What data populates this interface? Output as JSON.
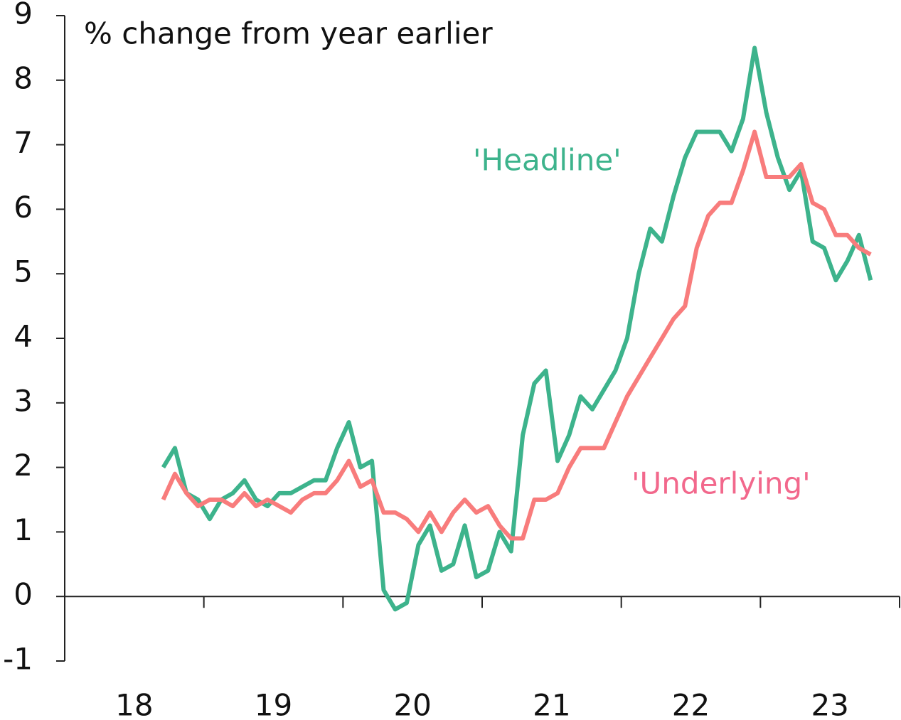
{
  "chart_data": {
    "type": "line",
    "title": "% change from year earlier",
    "annotations": [
      "'Headline'",
      "'Underlying'"
    ],
    "x": [
      18.708,
      18.792,
      18.875,
      18.958,
      19.042,
      19.125,
      19.208,
      19.292,
      19.375,
      19.458,
      19.542,
      19.625,
      19.708,
      19.792,
      19.875,
      19.958,
      20.042,
      20.125,
      20.208,
      20.292,
      20.375,
      20.458,
      20.542,
      20.625,
      20.708,
      20.792,
      20.875,
      20.958,
      21.042,
      21.125,
      21.208,
      21.292,
      21.375,
      21.458,
      21.542,
      21.625,
      21.708,
      21.792,
      21.875,
      21.958,
      22.042,
      22.125,
      22.208,
      22.292,
      22.375,
      22.458,
      22.542,
      22.625,
      22.708,
      22.792,
      22.875,
      22.958,
      23.042,
      23.125,
      23.208,
      23.292,
      23.375,
      23.458,
      23.542,
      23.625,
      23.708,
      23.792
    ],
    "series": [
      {
        "name": "'Headline'",
        "color": "#3db38c",
        "values": [
          2.0,
          2.3,
          1.6,
          1.5,
          1.2,
          1.5,
          1.6,
          1.8,
          1.5,
          1.4,
          1.6,
          1.6,
          1.7,
          1.8,
          1.8,
          2.3,
          2.7,
          2.0,
          2.1,
          0.1,
          -0.2,
          -0.1,
          0.8,
          1.1,
          0.4,
          0.5,
          1.1,
          0.3,
          0.4,
          1.0,
          0.7,
          2.5,
          3.3,
          3.5,
          2.1,
          2.5,
          3.1,
          2.9,
          3.2,
          3.5,
          4.0,
          5.0,
          5.7,
          5.5,
          6.2,
          6.8,
          7.2,
          7.2,
          7.2,
          6.9,
          7.4,
          8.5,
          7.5,
          6.8,
          6.3,
          6.6,
          5.5,
          5.4,
          4.9,
          5.2,
          5.6,
          4.9
        ]
      },
      {
        "name": "'Underlying'",
        "color": "#f87c7c",
        "values": [
          1.5,
          1.9,
          1.6,
          1.4,
          1.5,
          1.5,
          1.4,
          1.6,
          1.4,
          1.5,
          1.4,
          1.3,
          1.5,
          1.6,
          1.6,
          1.8,
          2.1,
          1.7,
          1.8,
          1.3,
          1.3,
          1.2,
          1.0,
          1.3,
          1.0,
          1.3,
          1.5,
          1.3,
          1.4,
          1.1,
          0.9,
          0.9,
          1.5,
          1.5,
          1.6,
          2.0,
          2.3,
          2.3,
          2.3,
          2.7,
          3.1,
          3.4,
          3.7,
          4.0,
          4.3,
          4.5,
          5.4,
          5.9,
          6.1,
          6.1,
          6.6,
          7.2,
          6.5,
          6.5,
          6.5,
          6.7,
          6.1,
          6.0,
          5.6,
          5.6,
          5.4,
          5.3
        ]
      }
    ],
    "xlim": [
      18,
      24
    ],
    "xticks": [
      18,
      19,
      20,
      21,
      22,
      23
    ],
    "ylim": [
      -1,
      9
    ],
    "yticks": [
      -1,
      0,
      1,
      2,
      3,
      4,
      5,
      6,
      7,
      8,
      9
    ],
    "grid": false
  }
}
